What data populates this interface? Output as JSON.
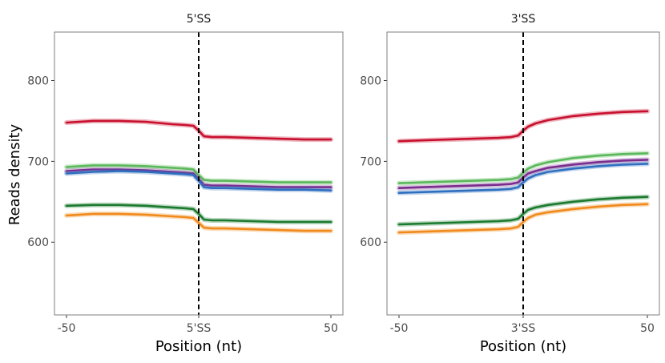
{
  "ylabel": "Reads density",
  "chart_data": [
    {
      "type": "line",
      "title": "5'SS",
      "xlabel": "Position (nt)",
      "ylabel": "Reads density",
      "x_ticks": [
        "-50",
        "5'SS",
        "50"
      ],
      "y_ticks": [
        600,
        700,
        800
      ],
      "xlim": [
        -50,
        50
      ],
      "ylim": [
        510,
        860
      ],
      "grid": false,
      "marker_at": 0,
      "x": [
        -50,
        -40,
        -30,
        -20,
        -10,
        -5,
        -2,
        0,
        2,
        5,
        10,
        20,
        30,
        40,
        50
      ],
      "series": [
        {
          "color": "#c8102e",
          "values": [
            748,
            750,
            750,
            749,
            746,
            745,
            744,
            738,
            731,
            730,
            730,
            729,
            728,
            727,
            727
          ]
        },
        {
          "color": "#5bb85b",
          "values": [
            693,
            695,
            695,
            694,
            692,
            691,
            690,
            683,
            677,
            676,
            676,
            675,
            674,
            674,
            674
          ]
        },
        {
          "color": "#7b2d8e",
          "values": [
            688,
            690,
            690,
            689,
            687,
            686,
            685,
            678,
            671,
            670,
            670,
            669,
            668,
            668,
            668
          ]
        },
        {
          "color": "#2f6fbf",
          "values": [
            685,
            687,
            688,
            687,
            685,
            684,
            683,
            676,
            668,
            667,
            667,
            666,
            665,
            665,
            664
          ]
        },
        {
          "color": "#1b7a2e",
          "values": [
            645,
            646,
            646,
            645,
            643,
            642,
            641,
            635,
            628,
            627,
            627,
            626,
            625,
            625,
            625
          ]
        },
        {
          "color": "#f08a1c",
          "values": [
            633,
            635,
            635,
            634,
            632,
            631,
            630,
            624,
            618,
            617,
            617,
            616,
            615,
            614,
            614
          ]
        }
      ]
    },
    {
      "type": "line",
      "title": "3'SS",
      "xlabel": "Position (nt)",
      "x_ticks": [
        "-50",
        "3'SS",
        "50"
      ],
      "y_ticks": [
        600,
        700,
        800
      ],
      "xlim": [
        -50,
        50
      ],
      "ylim": [
        510,
        860
      ],
      "grid": false,
      "marker_at": 0,
      "x": [
        -50,
        -40,
        -30,
        -20,
        -10,
        -5,
        -2,
        0,
        2,
        5,
        10,
        20,
        30,
        40,
        50
      ],
      "series": [
        {
          "color": "#c8102e",
          "values": [
            725,
            726,
            727,
            728,
            729,
            730,
            732,
            738,
            743,
            747,
            751,
            756,
            759,
            761,
            762
          ]
        },
        {
          "color": "#5bb85b",
          "values": [
            673,
            674,
            675,
            676,
            677,
            678,
            680,
            686,
            691,
            695,
            699,
            704,
            707,
            709,
            710
          ]
        },
        {
          "color": "#7b2d8e",
          "values": [
            667,
            668,
            669,
            670,
            671,
            672,
            674,
            680,
            685,
            688,
            692,
            696,
            699,
            701,
            702
          ]
        },
        {
          "color": "#2f6fbf",
          "values": [
            661,
            662,
            663,
            664,
            665,
            666,
            668,
            674,
            679,
            683,
            687,
            691,
            694,
            696,
            697
          ]
        },
        {
          "color": "#1b7a2e",
          "values": [
            622,
            623,
            624,
            625,
            626,
            627,
            629,
            635,
            640,
            643,
            646,
            650,
            653,
            655,
            656
          ]
        },
        {
          "color": "#f08a1c",
          "values": [
            612,
            613,
            614,
            615,
            616,
            617,
            619,
            625,
            630,
            634,
            637,
            641,
            644,
            646,
            647
          ]
        }
      ]
    }
  ]
}
